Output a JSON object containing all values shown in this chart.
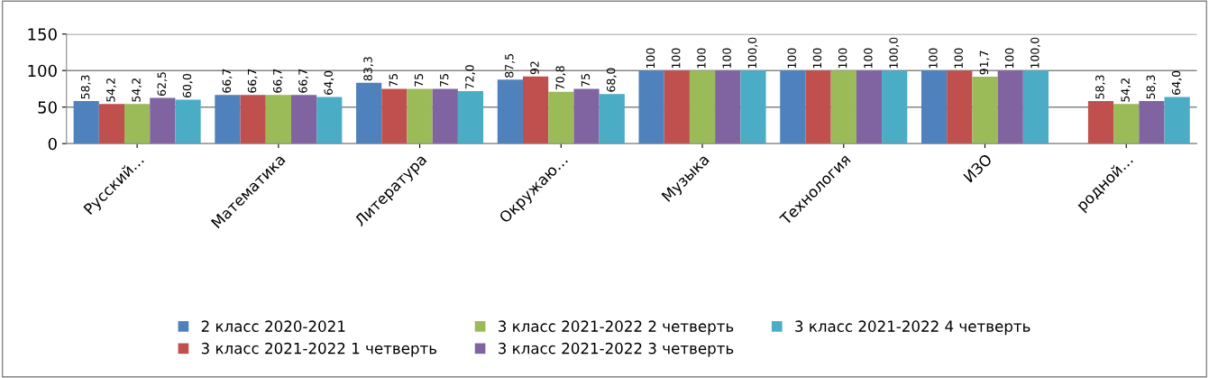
{
  "chart_data": {
    "type": "bar",
    "categories": [
      "Русский…",
      "Математика",
      "Литература",
      "Окружаю…",
      "Музыка",
      "Технология",
      "ИЗО",
      "родной…"
    ],
    "series": [
      {
        "name": "2 класс 2020-2021",
        "color": "#4f81bd",
        "values": [
          58.3,
          66.7,
          83.3,
          87.5,
          100,
          100,
          100,
          null
        ],
        "value_labels": [
          "58,3",
          "66,7",
          "83,3",
          "87,5",
          "100",
          "100",
          "100",
          null
        ]
      },
      {
        "name": "3 класс 2021-2022 1 четверть",
        "color": "#c0504d",
        "values": [
          54.2,
          66.7,
          75,
          92,
          100,
          100,
          100,
          58.3
        ],
        "value_labels": [
          "54,2",
          "66,7",
          "75",
          "92",
          "100",
          "100",
          "100",
          "58,3"
        ]
      },
      {
        "name": "3 класс 2021-2022 2 четверть",
        "color": "#9bbb59",
        "values": [
          54.2,
          66.7,
          75,
          70.8,
          100,
          100,
          91.7,
          54.2
        ],
        "value_labels": [
          "54,2",
          "66,7",
          "75",
          "70,8",
          "100",
          "100",
          "91,7",
          "54,2"
        ]
      },
      {
        "name": "3 класс 2021-2022 3 четверть",
        "color": "#8064a2",
        "values": [
          62.5,
          66.7,
          75,
          75,
          100,
          100,
          100,
          58.3
        ],
        "value_labels": [
          "62,5",
          "66,7",
          "75",
          "75",
          "100",
          "100",
          "100",
          "58,3"
        ]
      },
      {
        "name": "3 класс 2021-2022 4 четверть",
        "color": "#4bacc6",
        "values": [
          60.0,
          64.0,
          72.0,
          68.0,
          100.0,
          100.0,
          100.0,
          64.0
        ],
        "value_labels": [
          "60,0",
          "64,0",
          "72,0",
          "68,0",
          "100,0",
          "100,0",
          "100,0",
          "64,0"
        ]
      }
    ],
    "ylim": [
      0,
      150
    ],
    "yticks": [
      0,
      50,
      100,
      150
    ],
    "grid": "y",
    "legend": "bottom"
  }
}
